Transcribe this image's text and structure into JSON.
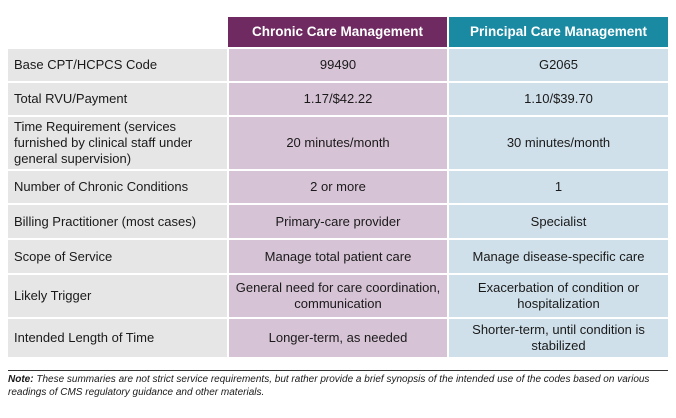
{
  "table": {
    "headers": [
      "",
      "Chronic Care Management",
      "Principal Care Management"
    ],
    "rows": [
      {
        "label": "Base CPT/HCPCS Code",
        "ccm": "99490",
        "pcm": "G2065"
      },
      {
        "label": "Total RVU/Payment",
        "ccm": "1.17/$42.22",
        "pcm": "1.10/$39.70"
      },
      {
        "label": "Time Requirement (services furnished by clinical staff under general supervision)",
        "ccm": "20 minutes/month",
        "pcm": "30 minutes/month"
      },
      {
        "label": "Number of Chronic Conditions",
        "ccm": "2 or more",
        "pcm": "1"
      },
      {
        "label": "Billing Practitioner (most cases)",
        "ccm": "Primary-care provider",
        "pcm": "Specialist"
      },
      {
        "label": "Scope of Service",
        "ccm": "Manage total patient care",
        "pcm": "Manage disease-specific care"
      },
      {
        "label": "Likely Trigger",
        "ccm": "General need for care coordination, communication",
        "pcm": "Exacerbation of condition or hospitalization"
      },
      {
        "label": "Intended Length of Time",
        "ccm": "Longer-term, as needed",
        "pcm": "Shorter-term, until condition is stabilized"
      }
    ]
  },
  "note": {
    "prefix": "Note:",
    "text": " These summaries are not strict service requirements, but rather provide a brief synopsis of the intended use of the codes based on various readings of CMS regulatory guidance and other materials."
  },
  "colors": {
    "ccm_header": "#6e2a61",
    "pcm_header": "#1a8aa3",
    "ccm_cell": "#d7c3d6",
    "pcm_cell": "#cfe0ea",
    "label_cell": "#e6e6e6"
  }
}
